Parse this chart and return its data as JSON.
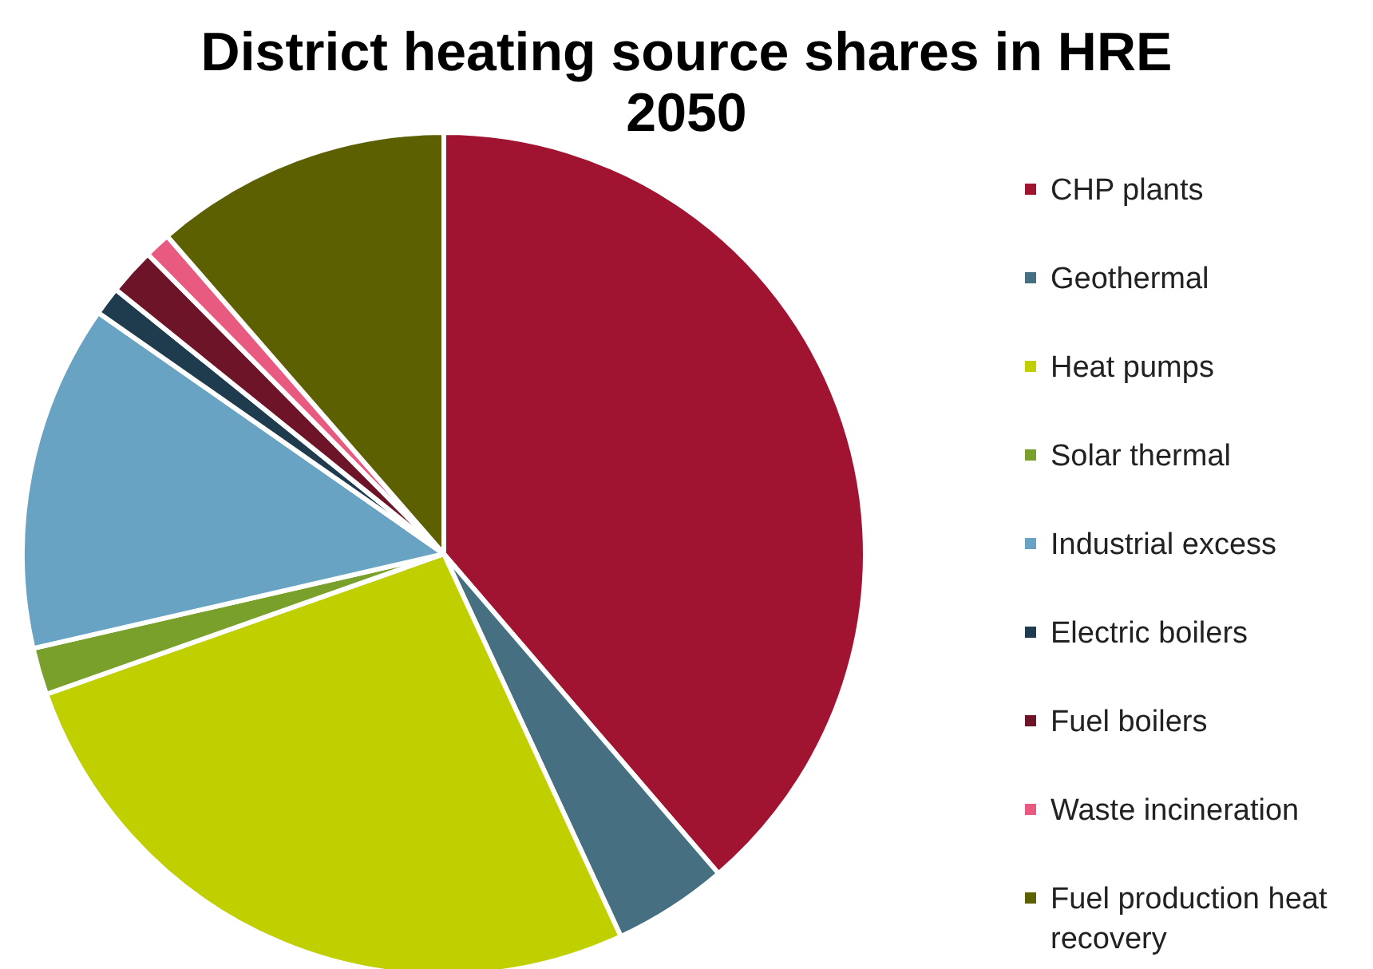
{
  "chart_data": {
    "type": "pie",
    "title": "District heating source shares in HRE 2050",
    "categories": [
      "CHP plants",
      "Geothermal",
      "Heat pumps",
      "Solar thermal",
      "Industrial excess",
      "Electric boilers",
      "Fuel boilers",
      "Waste incineration",
      "Fuel production heat recovery"
    ],
    "values": [
      38.7,
      4.4,
      26.5,
      1.8,
      13.3,
      1.1,
      1.8,
      1.0,
      11.4
    ],
    "colors": [
      "#a01431",
      "#467082",
      "#c0cf00",
      "#7aa02c",
      "#68a3c3",
      "#1e3c4d",
      "#6e1429",
      "#e85a80",
      "#5c6000"
    ],
    "legend": "right"
  }
}
